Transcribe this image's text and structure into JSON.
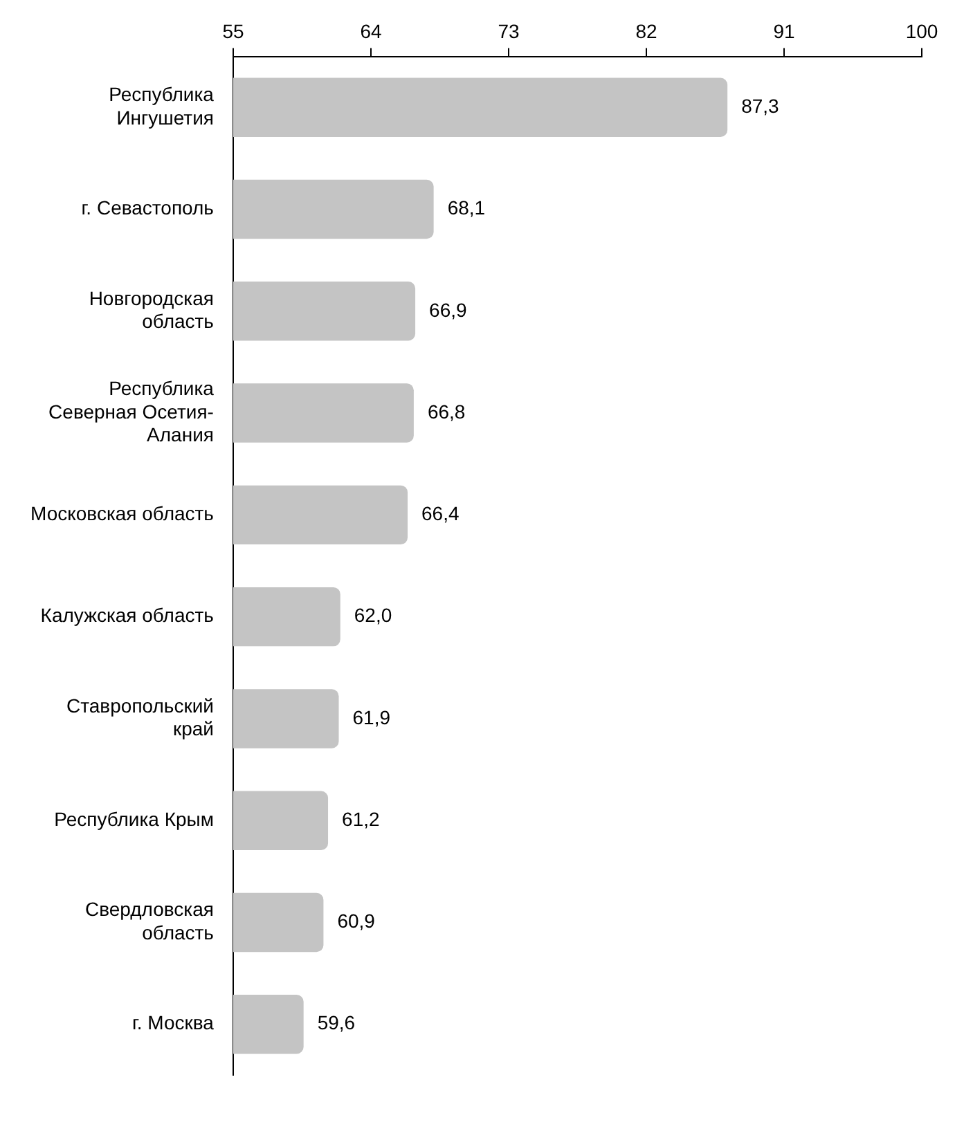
{
  "chart_data": {
    "type": "bar",
    "orientation": "horizontal",
    "categories": [
      "Республика Ингушетия",
      "г. Севастополь",
      "Новгородская область",
      "Республика Северная Осетия-Алания",
      "Московская область",
      "Калужская область",
      "Ставропольский край",
      "Республика Крым",
      "Свердловская область",
      "г. Москва"
    ],
    "values": [
      87.3,
      68.1,
      66.9,
      66.8,
      66.4,
      62.0,
      61.9,
      61.2,
      60.9,
      59.6
    ],
    "value_labels": [
      "87,3",
      "68,1",
      "66,9",
      "66,8",
      "66,4",
      "62,0",
      "61,9",
      "61,2",
      "60,9",
      "59,6"
    ],
    "color": "#c4c4c4",
    "xlim": [
      55,
      100
    ],
    "xticks": [
      55,
      64,
      73,
      82,
      91,
      100
    ]
  }
}
